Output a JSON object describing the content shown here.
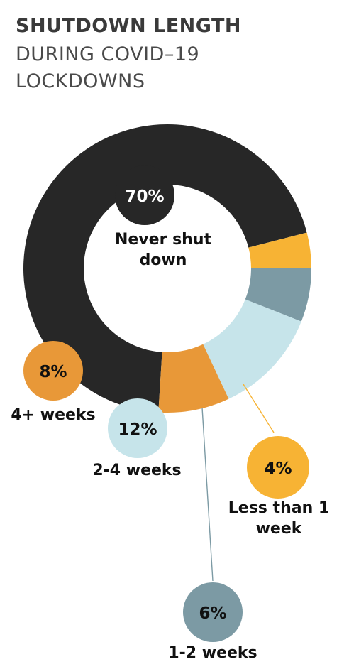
{
  "title": "SHUTDOWN LENGTH",
  "subtitle": "DURING COVID–19 LOCKDOWNS",
  "chart_data": {
    "type": "pie",
    "title": "SHUTDOWN LENGTH",
    "subtitle": "DURING COVID–19 LOCKDOWNS",
    "series": [
      {
        "name": "Never shut down",
        "value": 70,
        "label": "70%",
        "color": "#272727"
      },
      {
        "name": "Less than 1 week",
        "value": 4,
        "label": "4%",
        "color": "#f7b334"
      },
      {
        "name": "1-2 weeks",
        "value": 6,
        "label": "6%",
        "color": "#7c9aa4"
      },
      {
        "name": "2-4 weeks",
        "value": 12,
        "label": "12%",
        "color": "#c6e4ea"
      },
      {
        "name": "4+ weeks",
        "value": 8,
        "label": "8%",
        "color": "#e89838"
      }
    ]
  },
  "legend": {
    "never": "Never shut down",
    "less1": "Less than 1 week",
    "w12": "1-2 weeks",
    "w24": "2-4 weeks",
    "w4plus": "4+ weeks"
  }
}
